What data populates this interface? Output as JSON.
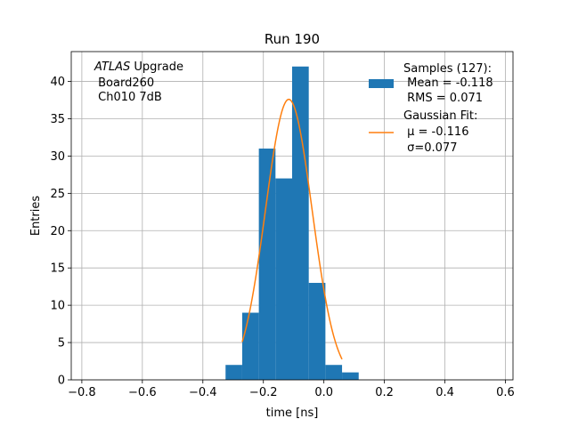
{
  "chart_data": {
    "type": "bar",
    "title": "Run 190",
    "xlabel": "time [ns]",
    "ylabel": "Entries",
    "xlim": [
      -0.835,
      0.625
    ],
    "ylim": [
      0,
      44
    ],
    "grid": true,
    "xticks": [
      -0.8,
      -0.6,
      -0.4,
      -0.2,
      0.0,
      0.2,
      0.4,
      0.6
    ],
    "xtick_labels": [
      "−0.8",
      "−0.6",
      "−0.4",
      "−0.2",
      "0.0",
      "0.2",
      "0.4",
      "0.6"
    ],
    "yticks": [
      0,
      5,
      10,
      15,
      20,
      25,
      30,
      35,
      40
    ],
    "ytick_labels": [
      "0",
      "5",
      "10",
      "15",
      "20",
      "25",
      "30",
      "35",
      "40"
    ],
    "histogram": {
      "name": "Samples",
      "color": "#1f77b4",
      "bin_edges": [
        -0.325,
        -0.27,
        -0.215,
        -0.16,
        -0.105,
        -0.05,
        0.005,
        0.06,
        0.115
      ],
      "counts": [
        2,
        9,
        31,
        27,
        42,
        13,
        2,
        1
      ]
    },
    "fit": {
      "name": "Gaussian Fit",
      "color": "#ff7f0e",
      "amplitude": 37.6,
      "mu": -0.116,
      "sigma": 0.077,
      "x_range": [
        -0.27,
        0.06
      ]
    },
    "legend": {
      "position": "upper right",
      "entries": [
        {
          "type": "patch",
          "color": "#1f77b4",
          "lines": [
            "Samples (127):",
            " Mean = -0.118",
            " RMS = 0.071"
          ]
        },
        {
          "type": "line",
          "color": "#ff7f0e",
          "lines": [
            "Gaussian Fit:",
            " μ = -0.116",
            " σ=0.077"
          ]
        }
      ]
    },
    "annotation": {
      "position": "upper left",
      "italic": "ATLAS",
      "rest": " Upgrade",
      "lines": [
        " Board260",
        " Ch010 7dB"
      ]
    }
  }
}
